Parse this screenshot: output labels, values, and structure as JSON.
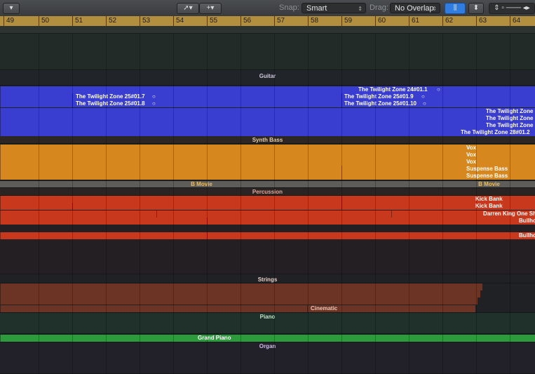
{
  "toolbar": {
    "snap_label": "Snap:",
    "snap_value": "Smart",
    "drag_label": "Drag:",
    "drag_value": "No Overlap"
  },
  "ruler": {
    "bars": [
      "49",
      "50",
      "51",
      "52",
      "53",
      "54",
      "55",
      "56",
      "57",
      "58",
      "59",
      "60",
      "61",
      "62",
      "63",
      "64"
    ]
  },
  "tracks": {
    "guitar": "Guitar",
    "synth_bass": "Synth Bass",
    "b_movie_1": "B Movie",
    "b_movie_2": "B Movie",
    "percussion": "Percussion",
    "strings": "Strings",
    "cinematic": "Cinematic",
    "piano": "Piano",
    "grand_piano": "Grand Piano",
    "organ": "Organ"
  },
  "regions": {
    "tz_24_1": "The Twilight Zone  24#01.1",
    "tz_25_7": "The Twilight Zone  25#01.7",
    "tz_25_9": "The Twilight Zone  25#01.9",
    "tz_25_8": "The Twilight Zone  25#01.8",
    "tz_25_10": "The Twilight Zone  25#01.10",
    "tz_a": "The Twilight Zone",
    "tz_b": "The Twilight Zone",
    "tz_c": "The Twilight Zone",
    "tz_28_2": "The Twilight Zone  28#01.2",
    "vox_1": "Vox",
    "vox_2": "Vox",
    "vox_3": "Vox",
    "suspense_1": "Suspense Bass",
    "suspense_2": "Suspense Bass",
    "kick_1": "Kick Bank",
    "kick_2": "Kick Bank",
    "darren": "Darren King One Sh",
    "bullho_1": "Bullho",
    "bullho_2": "Bullho"
  },
  "colors": {
    "blue": "#3a3ed0",
    "orange": "#d6871e",
    "red": "#c8381c",
    "brown": "#6b3424",
    "green": "#2c9b3c",
    "ruler": "#b28f3f"
  }
}
